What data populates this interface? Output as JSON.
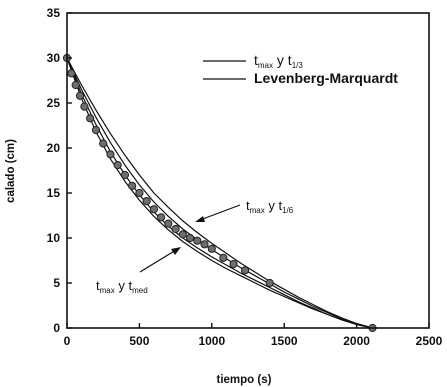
{
  "chart_data": {
    "type": "line",
    "xlabel": "tiempo (s)",
    "ylabel": "calado (cm)",
    "xlim": [
      0,
      2500
    ],
    "ylim": [
      0,
      35
    ],
    "xticks": [
      "0",
      "500",
      "1000",
      "1500",
      "2000",
      "2500"
    ],
    "yticks": [
      "0",
      "5",
      "10",
      "15",
      "20",
      "25",
      "30",
      "35"
    ],
    "grid": false,
    "legend_position": "top-right",
    "colors": {
      "axis": "#111111",
      "line": "#111111",
      "marker": "#6e6e6e",
      "marker_edge": "#222222"
    },
    "legend": [
      {
        "label": "t",
        "sub": "max",
        "mid": " y t",
        "sub2": "1/3"
      },
      {
        "label": "Levenberg-Marquardt"
      }
    ],
    "annotations": [
      {
        "label": "t",
        "sub": "max",
        "mid": " y t",
        "sub2": "1/6",
        "points_to_x": 900,
        "points_to_y": 12.2
      },
      {
        "label": "t",
        "sub": "max",
        "mid": " y t",
        "sub2": "med",
        "points_to_x": 790,
        "points_to_y": 9.8
      }
    ],
    "series": [
      {
        "type": "line",
        "x": [
          0,
          100,
          200,
          300,
          400,
          500,
          600,
          700,
          800,
          900,
          1000,
          1100,
          1200,
          1300,
          1400,
          1500,
          1600,
          1700,
          1800,
          1900,
          2000,
          2110
        ],
        "y": [
          30,
          27.0,
          24.2,
          21.6,
          19.2,
          17.0,
          15.0,
          13.4,
          11.9,
          10.6,
          9.4,
          8.3,
          7.2,
          6.2,
          5.2,
          4.3,
          3.4,
          2.6,
          1.8,
          1.1,
          0.5,
          0
        ]
      },
      {
        "type": "line",
        "x": [
          0,
          100,
          200,
          300,
          400,
          500,
          600,
          700,
          800,
          900,
          1000,
          1100,
          1200,
          1300,
          1400,
          1500,
          1600,
          1700,
          1800,
          1900,
          2000,
          2110
        ],
        "y": [
          30,
          26.5,
          23.4,
          20.6,
          18.1,
          15.9,
          14.0,
          12.4,
          11.0,
          9.8,
          8.7,
          7.7,
          6.7,
          5.8,
          4.9,
          4.0,
          3.2,
          2.4,
          1.7,
          1.0,
          0.4,
          0
        ]
      },
      {
        "type": "line",
        "x": [
          0,
          100,
          200,
          300,
          400,
          500,
          600,
          700,
          800,
          900,
          1000,
          1100,
          1200,
          1300,
          1400,
          1500,
          1600,
          1700,
          1800,
          1900,
          2000,
          2110
        ],
        "y": [
          30,
          26.0,
          22.6,
          19.6,
          17.0,
          14.8,
          12.9,
          11.3,
          10.0,
          8.9,
          7.9,
          7.0,
          6.1,
          5.3,
          4.5,
          3.7,
          2.9,
          2.2,
          1.5,
          0.9,
          0.4,
          0
        ]
      },
      {
        "type": "line",
        "x": [
          0,
          100,
          200,
          300,
          400,
          500,
          600,
          700,
          800,
          900,
          1000,
          1100,
          1200,
          1300,
          1400,
          1500,
          1600,
          1700,
          1800,
          1900,
          2000,
          2110
        ],
        "y": [
          30,
          25.5,
          21.8,
          18.8,
          16.3,
          14.2,
          12.4,
          10.9,
          9.6,
          8.5,
          7.5,
          6.6,
          5.8,
          5.0,
          4.2,
          3.5,
          2.8,
          2.1,
          1.5,
          0.9,
          0.4,
          0
        ]
      },
      {
        "type": "scatter",
        "x": [
          0,
          30,
          60,
          90,
          120,
          160,
          200,
          250,
          300,
          350,
          400,
          450,
          500,
          550,
          600,
          650,
          700,
          750,
          800,
          850,
          900,
          950,
          1000,
          1080,
          1150,
          1230,
          1400,
          2110
        ],
        "y": [
          30,
          28.3,
          27.0,
          25.8,
          24.6,
          23.3,
          22.0,
          20.5,
          19.3,
          18.1,
          17.0,
          15.8,
          15.0,
          14.1,
          13.2,
          12.3,
          11.6,
          11.0,
          10.4,
          10.0,
          9.7,
          9.3,
          8.8,
          7.8,
          7.1,
          6.4,
          5.0,
          0
        ]
      }
    ]
  }
}
